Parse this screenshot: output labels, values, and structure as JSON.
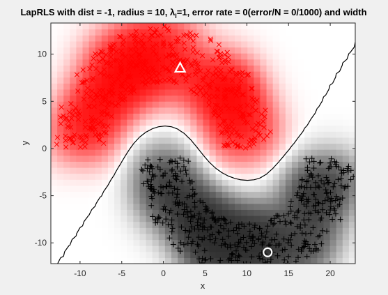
{
  "chart_data": {
    "type": "scatter",
    "title": "LapRLS with dist = -1, radius = 10, λ_I=1, error rate = 0(error/N = 0/1000) and width",
    "title_parts": {
      "before": "LapRLS with dist = -1, radius = 10, ",
      "lambda": "λ",
      "subscript": "I",
      "after": "=1, error rate = 0(error/N = 0/1000) and width"
    },
    "xlabel": "x",
    "ylabel": "y",
    "xlim": [
      -13.5,
      23
    ],
    "ylim": [
      -12.2,
      13.3
    ],
    "x_ticks": [
      -10,
      -5,
      0,
      5,
      10,
      15,
      20
    ],
    "y_ticks": [
      -10,
      -5,
      0,
      5,
      10
    ],
    "background": "decision-function heatmap (red = positive, gray/black = negative) with black zero contour",
    "series": [
      {
        "marker": "x",
        "color": "#ff0000",
        "shape": "upper half-moon",
        "center": [
          0,
          0
        ],
        "radius": 10,
        "count": 500
      },
      {
        "marker": "+",
        "color": "#000000",
        "shape": "lower half-moon",
        "center": [
          10,
          -1
        ],
        "radius": 10,
        "count": 500
      }
    ],
    "labeled_points": [
      {
        "marker": "triangle",
        "x": 2,
        "y": 8.5,
        "color": "#ffffff"
      },
      {
        "marker": "circle",
        "x": 12.5,
        "y": -11,
        "color": "#ffffff"
      }
    ],
    "colors": {
      "positive": "#ff2020",
      "negative": "#2a2a2a",
      "contour": "#000000"
    }
  }
}
